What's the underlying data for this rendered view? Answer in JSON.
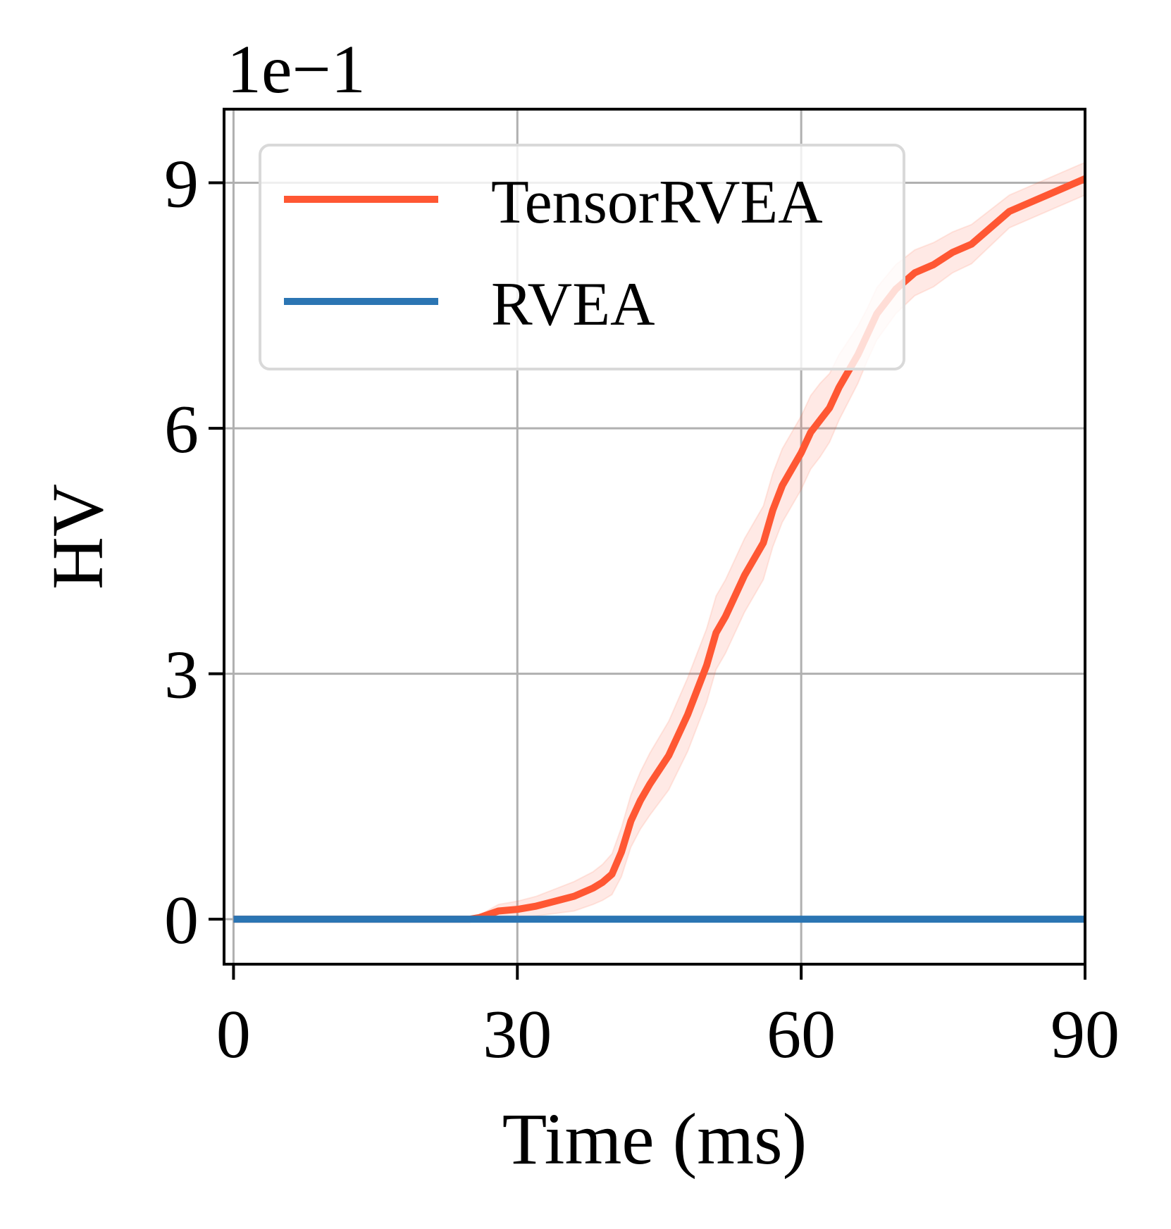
{
  "chart_data": {
    "type": "line",
    "title": "",
    "xlabel": "Time (ms)",
    "ylabel": "HV",
    "y_scale_label": "1e−1",
    "xlim": [
      -1,
      90
    ],
    "ylim": [
      -0.55,
      9.9
    ],
    "xticks": [
      0,
      30,
      60,
      90
    ],
    "xtick_labels": [
      "0",
      "30",
      "60",
      "90"
    ],
    "yticks": [
      0,
      3,
      6,
      9
    ],
    "ytick_labels": [
      "0",
      "3",
      "6",
      "9"
    ],
    "grid": true,
    "legend_position": "top-left",
    "series": [
      {
        "name": "TensorRVEA",
        "color": "#FF5733",
        "x": [
          0,
          17,
          25,
          26,
          28,
          30,
          32,
          34,
          36,
          38,
          39,
          40,
          41,
          42,
          43,
          44,
          46,
          48,
          49,
          50,
          51,
          52,
          53,
          54,
          56,
          57,
          58,
          59,
          60,
          61,
          62,
          63,
          64,
          66,
          67,
          68,
          70,
          72,
          74,
          76,
          78,
          79,
          80,
          81,
          82,
          84,
          86,
          88,
          90
        ],
        "y": [
          0,
          0,
          0,
          0.02,
          0.1,
          0.12,
          0.16,
          0.22,
          0.28,
          0.38,
          0.45,
          0.55,
          0.82,
          1.2,
          1.45,
          1.65,
          2.0,
          2.5,
          2.8,
          3.1,
          3.5,
          3.7,
          3.95,
          4.2,
          4.6,
          5.0,
          5.3,
          5.5,
          5.7,
          5.95,
          6.1,
          6.25,
          6.5,
          6.9,
          7.15,
          7.4,
          7.7,
          7.9,
          8.0,
          8.15,
          8.25,
          8.35,
          8.45,
          8.55,
          8.65,
          8.75,
          8.85,
          8.95,
          9.05
        ],
        "band_halfwidth": [
          0,
          0,
          0,
          0.03,
          0.08,
          0.1,
          0.12,
          0.15,
          0.18,
          0.2,
          0.22,
          0.25,
          0.3,
          0.32,
          0.35,
          0.38,
          0.42,
          0.45,
          0.45,
          0.45,
          0.45,
          0.45,
          0.45,
          0.45,
          0.45,
          0.45,
          0.45,
          0.45,
          0.45,
          0.45,
          0.45,
          0.42,
          0.4,
          0.35,
          0.32,
          0.32,
          0.3,
          0.28,
          0.27,
          0.25,
          0.24,
          0.23,
          0.22,
          0.21,
          0.2,
          0.2,
          0.2,
          0.2,
          0.2
        ]
      },
      {
        "name": "RVEA",
        "color": "#2B75B3",
        "x": [
          0,
          90
        ],
        "y": [
          0,
          0
        ]
      }
    ]
  }
}
